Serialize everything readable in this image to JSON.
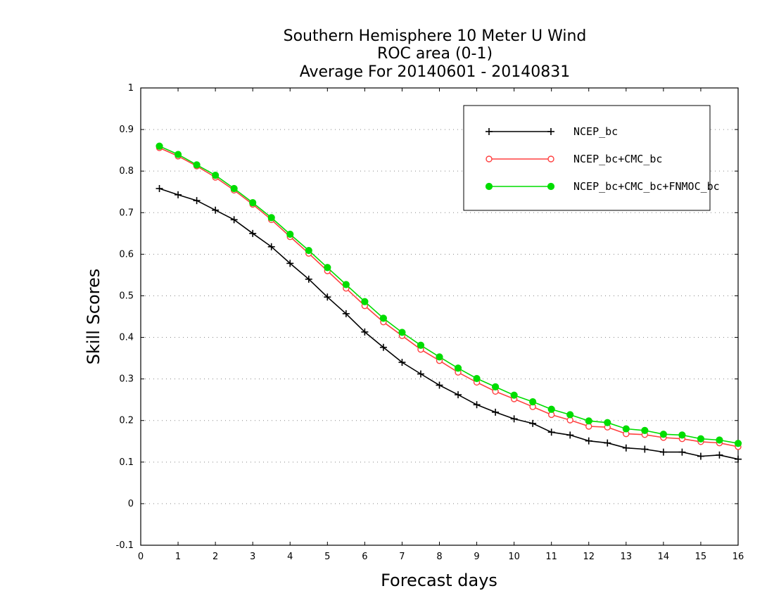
{
  "chart_data": {
    "type": "line",
    "title": [
      "Southern Hemisphere 10 Meter U Wind",
      "ROC area (0-1)",
      "Average For 20140601 - 20140831"
    ],
    "xlabel": "Forecast days",
    "ylabel": "Skill Scores",
    "xlim": [
      0,
      16
    ],
    "ylim": [
      -0.1,
      1
    ],
    "xticks": [
      "0",
      "1",
      "2",
      "3",
      "4",
      "5",
      "6",
      "7",
      "8",
      "9",
      "10",
      "11",
      "12",
      "13",
      "14",
      "15",
      "16"
    ],
    "yticks": [
      "-0.1",
      "0",
      "0.1",
      "0.2",
      "0.3",
      "0.4",
      "0.5",
      "0.6",
      "0.7",
      "0.8",
      "0.9",
      "1"
    ],
    "grid": "dotted horizontal",
    "legend_position": "top-right",
    "x": [
      0.5,
      1,
      1.5,
      2,
      2.5,
      3,
      3.5,
      4,
      4.5,
      5,
      5.5,
      6,
      6.5,
      7,
      7.5,
      8,
      8.5,
      9,
      9.5,
      10,
      10.5,
      11,
      11.5,
      12,
      12.5,
      13,
      13.5,
      14,
      14.5,
      15,
      15.5,
      16
    ],
    "series": [
      {
        "name": "NCEP_bc",
        "color": "#000000",
        "marker": "plus",
        "values": [
          0.758,
          0.743,
          0.729,
          0.706,
          0.683,
          0.65,
          0.618,
          0.578,
          0.54,
          0.497,
          0.457,
          0.413,
          0.376,
          0.34,
          0.312,
          0.285,
          0.262,
          0.238,
          0.22,
          0.204,
          0.193,
          0.172,
          0.165,
          0.151,
          0.146,
          0.134,
          0.131,
          0.124,
          0.124,
          0.114,
          0.117,
          0.107
        ]
      },
      {
        "name": "NCEP_bc+CMC_bc",
        "color": "#ff4040",
        "marker": "open-circle",
        "values": [
          0.856,
          0.836,
          0.812,
          0.785,
          0.754,
          0.72,
          0.683,
          0.642,
          0.602,
          0.56,
          0.518,
          0.476,
          0.437,
          0.404,
          0.371,
          0.344,
          0.316,
          0.292,
          0.27,
          0.252,
          0.233,
          0.214,
          0.201,
          0.186,
          0.184,
          0.168,
          0.166,
          0.159,
          0.156,
          0.149,
          0.146,
          0.137
        ]
      },
      {
        "name": "NCEP_bc+CMC_bc+FNMOC_bc",
        "color": "#00dd00",
        "marker": "filled-circle",
        "values": [
          0.86,
          0.84,
          0.815,
          0.79,
          0.758,
          0.724,
          0.688,
          0.648,
          0.609,
          0.568,
          0.527,
          0.486,
          0.446,
          0.412,
          0.381,
          0.353,
          0.326,
          0.301,
          0.281,
          0.261,
          0.245,
          0.227,
          0.214,
          0.199,
          0.195,
          0.18,
          0.176,
          0.167,
          0.165,
          0.156,
          0.153,
          0.145
        ]
      }
    ]
  }
}
